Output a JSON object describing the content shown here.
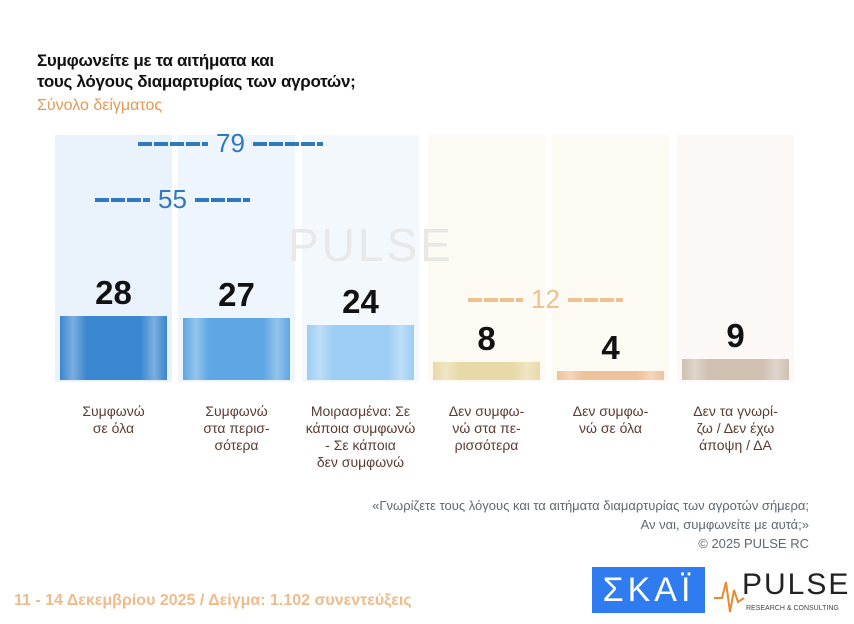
{
  "title_line1": "Συμφωνείτε με τα αιτήματα και",
  "title_line2": "τους λόγους διαμαρτυρίας των αγροτών;",
  "subtitle": "Σύνολο δείγματος",
  "chart_data": {
    "type": "bar",
    "title": "Συμφωνείτε με τα αιτήματα και τους λόγους διαμαρτυρίας των αγροτών;",
    "subtitle": "Σύνολο δείγματος",
    "categories": [
      "Συμφωνώ σε όλα",
      "Συμφωνώ στα περισ-σότερα",
      "Μοιρασμένα: Σε κάποια συμφωνώ - Σε κάποια δεν συμφωνώ",
      "Δεν συμφω-νώ στα πε-ρισσότερα",
      "Δεν συμφω-νώ σε όλα",
      "Δεν τα γνωρί-ζω / Δεν έχω άποψη / ΔΑ"
    ],
    "category_lines": [
      [
        "Συμφωνώ",
        "σε όλα"
      ],
      [
        "Συμφωνώ",
        "στα περισ-",
        "σότερα"
      ],
      [
        "Μοιρασμένα: Σε",
        "κάποια συμφωνώ",
        "- Σε κάποια",
        "δεν συμφωνώ"
      ],
      [
        "Δεν συμφω-",
        "νώ στα πε-",
        "ρισσότερα"
      ],
      [
        "Δεν συμφω-",
        "νώ σε όλα"
      ],
      [
        "Δεν τα γνωρί-",
        "ζω / Δεν έχω",
        "άποψη / ΔΑ"
      ]
    ],
    "values": [
      28,
      27,
      24,
      8,
      4,
      9
    ],
    "value_labels": [
      "28",
      "27",
      "24",
      "8",
      "4",
      "9"
    ],
    "colors": [
      "#3a86cf",
      "#5ea6e4",
      "#9ccdf3",
      "#e8d9a8",
      "#eec29a",
      "#cfc0b0"
    ],
    "brackets": [
      {
        "label": "79",
        "color": "#2f78c2"
      },
      {
        "label": "55",
        "color": "#2f78c2"
      },
      {
        "label": "12",
        "color": "#f0c08e"
      }
    ]
  },
  "note_line1": "«Γνωρίζετε τους λόγους και τα αιτήματα διαμαρτυρίας των αγροτών σήμερα;",
  "note_line2": "Αν ναι, συμφωνείτε με αυτά;»",
  "copyright": "©  2025  PULSE RC",
  "footer": "11 - 14 Δεκεμβρίου 2025  /  Δείγμα:  1.102 συνεντεύξεις",
  "logos": {
    "skai": "ΣΚΑΪ",
    "pulse": "PULSE",
    "pulse_sub": "RESEARCH & CONSULTING",
    "watermark": "PULSE"
  }
}
